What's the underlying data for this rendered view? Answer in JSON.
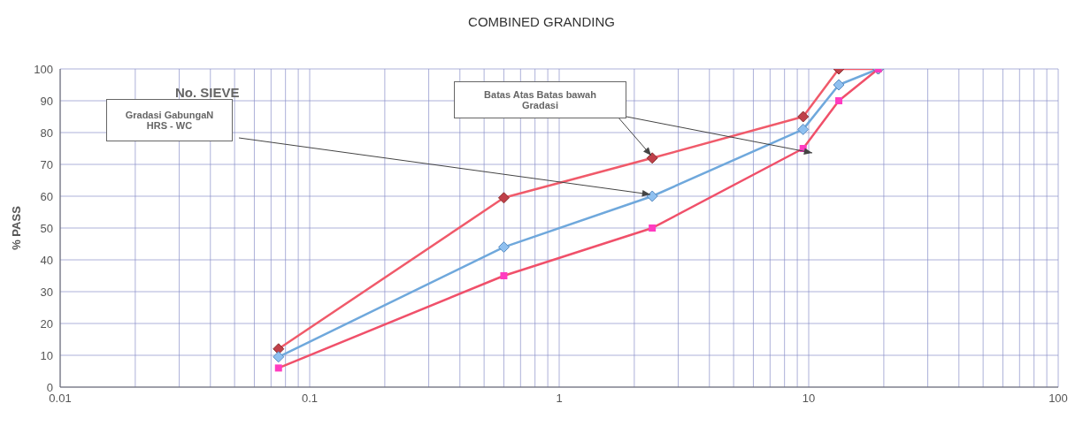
{
  "chart_data": {
    "type": "line",
    "title": "COMBINED GRANDING",
    "ylabel": "% PASS",
    "annotations": [
      "No. SIEVE",
      "Gradasi GabungaN\nHRS - WC",
      "Batas Atas Batas bawah\nGradasi"
    ],
    "log": "x",
    "xlim": [
      0.01,
      100
    ],
    "xticks": [
      0.01,
      {
        "value": 0.02,
        "label": null
      },
      {
        "value": 0.03,
        "label": null
      },
      {
        "value": 0.04,
        "label": null
      },
      {
        "value": 0.05,
        "label": null
      },
      {
        "value": 0.06,
        "label": null
      },
      {
        "value": 0.07,
        "label": null
      },
      {
        "value": 0.08,
        "label": null
      },
      {
        "value": 0.09,
        "label": null
      },
      0.1,
      {
        "value": 0.2,
        "label": null
      },
      {
        "value": 0.3,
        "label": null
      },
      {
        "value": 0.4,
        "label": null
      },
      {
        "value": 0.5,
        "label": null
      },
      {
        "value": 0.6,
        "label": null
      },
      {
        "value": 0.7,
        "label": null
      },
      {
        "value": 0.8,
        "label": null
      },
      {
        "value": 0.9,
        "label": null
      },
      1,
      {
        "value": 2,
        "label": null
      },
      {
        "value": 3,
        "label": null
      },
      {
        "value": 4,
        "label": null
      },
      {
        "value": 5,
        "label": null
      },
      {
        "value": 6,
        "label": null
      },
      {
        "value": 7,
        "label": null
      },
      {
        "value": 8,
        "label": null
      },
      {
        "value": 9,
        "label": null
      },
      10,
      {
        "value": 20,
        "label": null
      },
      {
        "value": 30,
        "label": null
      },
      {
        "value": 40,
        "label": null
      },
      {
        "value": 50,
        "label": null
      },
      {
        "value": 60,
        "label": null
      },
      {
        "value": 70,
        "label": null
      },
      {
        "value": 80,
        "label": null
      },
      {
        "value": 90,
        "label": null
      },
      100
    ],
    "ylim": [
      0,
      100
    ],
    "yticks": [
      0,
      10,
      20,
      30,
      40,
      50,
      60,
      70,
      80,
      90,
      100
    ],
    "grid": true,
    "legend": false,
    "line_style": "solid",
    "series": [
      {
        "color": "#f05a6a",
        "marker": "diamond",
        "x": [
          0.075,
          0.6,
          2.36,
          9.5,
          13.2,
          19
        ],
        "values": [
          12,
          59.5,
          72,
          85,
          100,
          100
        ]
      },
      {
        "color": "#6fa8dc",
        "marker": "diamond",
        "x": [
          0.075,
          0.6,
          2.36,
          9.5,
          13.2,
          19
        ],
        "values": [
          9.5,
          44,
          60,
          81,
          95,
          100
        ]
      },
      {
        "color": "#f0506a",
        "marker": "square",
        "x": [
          0.075,
          0.6,
          2.36,
          9.5,
          13.2,
          19
        ],
        "values": [
          6,
          35,
          50,
          75,
          90,
          100
        ]
      }
    ]
  }
}
